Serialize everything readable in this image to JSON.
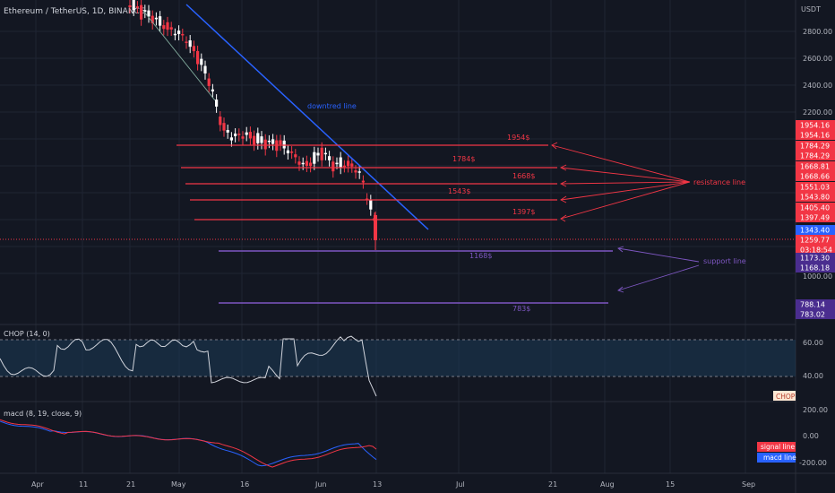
{
  "symbol_title": "Ethereum / TetherUS, 1D, BINANCE",
  "price_unit": "USDT",
  "price_axis_labels": [
    "2800.00",
    "2600.00",
    "2400.00",
    "2200.00",
    "1000.00"
  ],
  "price_tags": [
    {
      "text": "1954.16",
      "color": "#f23645"
    },
    {
      "text": "1954.16",
      "color": "#f23645"
    },
    {
      "text": "1784.29",
      "color": "#f23645"
    },
    {
      "text": "1784.29",
      "color": "#f23645"
    },
    {
      "text": "1668.81",
      "color": "#f23645"
    },
    {
      "text": "1668.66",
      "color": "#f23645"
    },
    {
      "text": "1551.03",
      "color": "#f23645"
    },
    {
      "text": "1543.80",
      "color": "#f23645"
    },
    {
      "text": "1405.40",
      "color": "#f23645"
    },
    {
      "text": "1397.49",
      "color": "#f23645"
    },
    {
      "text": "1343.40",
      "color": "#2962ff"
    },
    {
      "text": "1259.77",
      "color": "#f23645"
    },
    {
      "text": "03:18:54",
      "color": "#f23645"
    },
    {
      "text": "1173.30",
      "color": "#4a2d8f"
    },
    {
      "text": "1168.18",
      "color": "#4a2d8f"
    },
    {
      "text": "788.14",
      "color": "#4a2d8f"
    },
    {
      "text": "783.02",
      "color": "#4a2d8f"
    }
  ],
  "annotations": {
    "downtrend": "downtred line",
    "resistance": "resistance line",
    "support": "support line"
  },
  "resistance_levels": [
    {
      "label": "1954$"
    },
    {
      "label": "1784$"
    },
    {
      "label": "1668$"
    },
    {
      "label": "1543$"
    },
    {
      "label": "1397$"
    }
  ],
  "support_levels": [
    {
      "label": "1168$"
    },
    {
      "label": "783$"
    }
  ],
  "chop": {
    "title": "CHOP (14, 0)",
    "axis": [
      "60.00",
      "40.00"
    ],
    "tag": "CHOP"
  },
  "macd": {
    "title": "macd (8, 19, close, 9)",
    "axis": [
      "200.00",
      "0.00",
      "-200.00"
    ],
    "legend": [
      {
        "label": "signal line",
        "color": "#f23645"
      },
      {
        "label": "macd line",
        "color": "#2962ff"
      }
    ]
  },
  "time_axis": [
    "Apr",
    "11",
    "21",
    "May",
    "16",
    "Jun",
    "13",
    "Jul",
    "21",
    "Aug",
    "15",
    "Sep"
  ],
  "colors": {
    "background": "#131722",
    "up": "#ffffff",
    "down": "#f23645",
    "downtrend": "#2962ff",
    "resistance": "#f23645",
    "support": "#7e57c2"
  }
}
